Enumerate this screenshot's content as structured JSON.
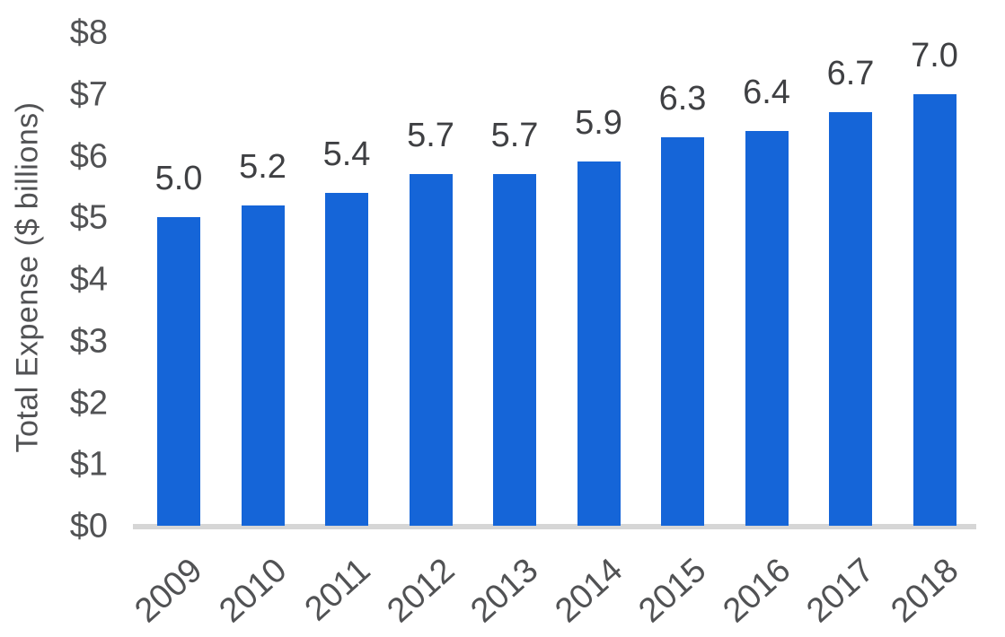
{
  "chart_data": {
    "type": "bar",
    "title": "",
    "xlabel": "",
    "ylabel": "Total Expense ($ billions)",
    "categories": [
      "2009",
      "2010",
      "2011",
      "2012",
      "2013",
      "2014",
      "2015",
      "2016",
      "2017",
      "2018"
    ],
    "values": [
      5.0,
      5.2,
      5.4,
      5.7,
      5.7,
      5.9,
      6.3,
      6.4,
      6.7,
      7.0
    ],
    "bar_labels": [
      "5.0",
      "5.2",
      "5.4",
      "5.7",
      "5.7",
      "5.9",
      "6.3",
      "6.4",
      "6.7",
      "7.0"
    ],
    "ylim": [
      0,
      8
    ],
    "ytick_labels": [
      "$0",
      "$1",
      "$2",
      "$3",
      "$4",
      "$5",
      "$6",
      "$7",
      "$8"
    ],
    "grid": false,
    "legend_position": "none",
    "colors": {
      "bar": "#1565d8",
      "axis_line": "#d6d6d6",
      "tick_text": "#515254",
      "value_text": "#3f4043"
    }
  }
}
